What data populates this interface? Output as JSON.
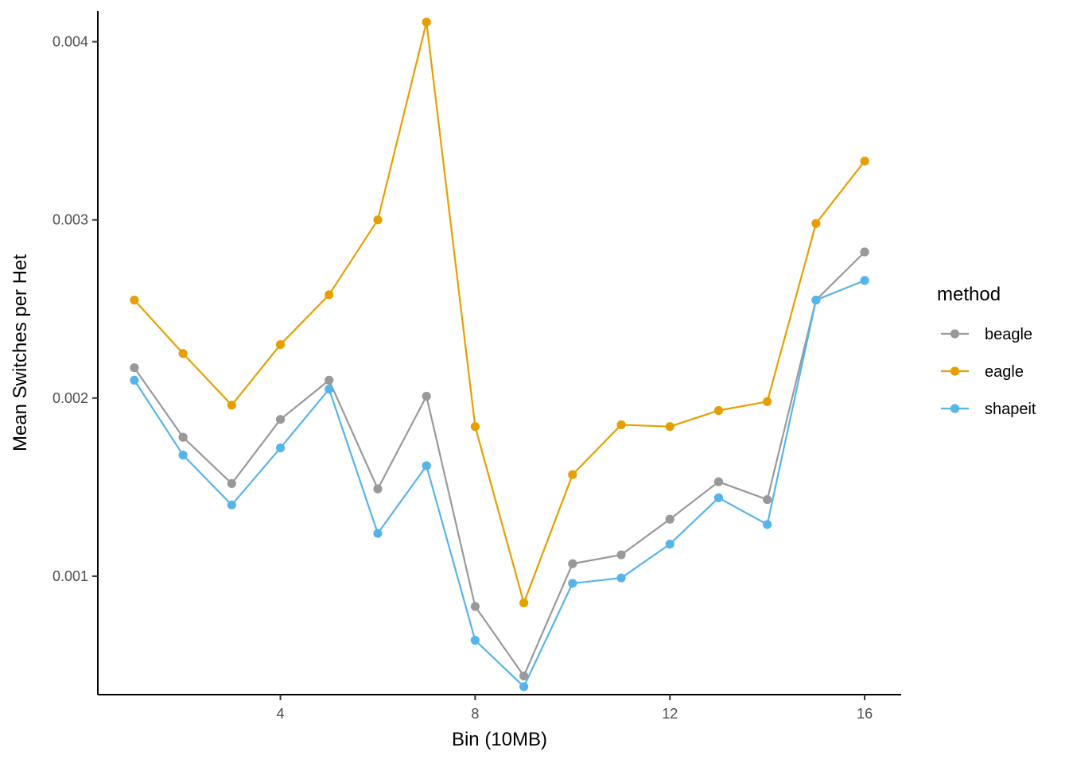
{
  "chart_data": {
    "type": "line",
    "title": "",
    "xlabel": "Bin (10MB)",
    "ylabel": "Mean Switches per Het",
    "x": [
      1,
      2,
      3,
      4,
      5,
      6,
      7,
      8,
      9,
      10,
      11,
      12,
      13,
      14,
      15,
      16
    ],
    "xticks": [
      4,
      8,
      12,
      16
    ],
    "xtick_labels": [
      "4",
      "8",
      "12",
      "16"
    ],
    "yticks": [
      0.001,
      0.002,
      0.003,
      0.004
    ],
    "ytick_labels": [
      "0.001",
      "0.002",
      "0.003",
      "0.004"
    ],
    "xlim": [
      0.25,
      16.75
    ],
    "ylim": [
      0.000335,
      0.004172
    ],
    "grid": false,
    "legend": {
      "title": "method",
      "position": "right"
    },
    "series": [
      {
        "name": "beagle",
        "color": "#999999",
        "values": [
          0.00217,
          0.00178,
          0.00152,
          0.00188,
          0.0021,
          0.00149,
          0.00201,
          0.00083,
          0.00044,
          0.00107,
          0.00112,
          0.00132,
          0.00153,
          0.00143,
          0.00255,
          0.00282
        ]
      },
      {
        "name": "eagle",
        "color": "#E69F00",
        "values": [
          0.00255,
          0.00225,
          0.00196,
          0.0023,
          0.00258,
          0.003,
          0.00411,
          0.00184,
          0.00085,
          0.00157,
          0.00185,
          0.00184,
          0.00193,
          0.00198,
          0.00298,
          0.00333
        ]
      },
      {
        "name": "shapeit",
        "color": "#56B4E9",
        "values": [
          0.0021,
          0.00168,
          0.0014,
          0.00172,
          0.00205,
          0.00124,
          0.00162,
          0.00064,
          0.00038,
          0.00096,
          0.00099,
          0.00118,
          0.00144,
          0.00129,
          0.00255,
          0.00266
        ]
      }
    ]
  }
}
